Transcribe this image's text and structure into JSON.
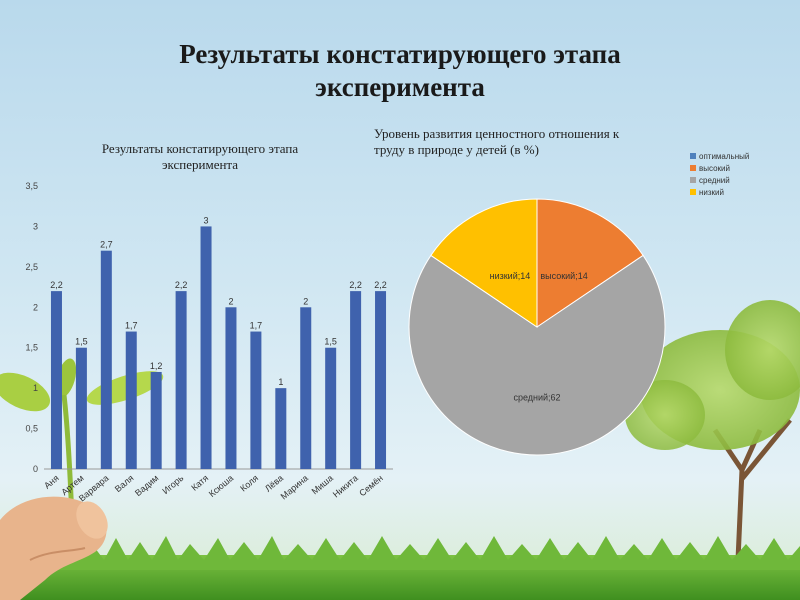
{
  "slide": {
    "title_line1": "Результаты констатирующего этапа",
    "title_line2": "эксперимента"
  },
  "chart_data": [
    {
      "type": "bar",
      "title_line1": "Результаты констатирующего этапа",
      "title_line2": "эксперимента",
      "categories": [
        "Аня",
        "Артем",
        "Варвара",
        "Валя",
        "Вадим",
        "Игорь",
        "Катя",
        "Ксюша",
        "Коля",
        "Лёва",
        "Марина",
        "Миша",
        "Никита",
        "Семён"
      ],
      "values": [
        2.2,
        1.5,
        2.7,
        1.7,
        1.2,
        2.2,
        3,
        2,
        1.7,
        1,
        2,
        1.5,
        2.2,
        2.2
      ],
      "value_labels": [
        "2,2",
        "1,5",
        "2,7",
        "1,7",
        "1,2",
        "2,2",
        "3",
        "2",
        "1,7",
        "1",
        "2",
        "1,5",
        "2,2",
        "2,2"
      ],
      "ylim": [
        0,
        3.5
      ],
      "yticks": [
        0,
        0.5,
        1,
        1.5,
        2,
        2.5,
        3,
        3.5
      ],
      "ytick_labels": [
        "0",
        "0,5",
        "1",
        "1,5",
        "2",
        "2,5",
        "3",
        "3,5"
      ],
      "grid": false,
      "color": "#3f62ad"
    },
    {
      "type": "pie",
      "title_line1": "Уровень развития ценностного отношения к",
      "title_line2": "труду в природе у детей (в %)",
      "slices": [
        {
          "label": "оптимальный",
          "value": 0,
          "color": "#4f81bd",
          "data_label": ""
        },
        {
          "label": "высокий",
          "value": 14,
          "color": "#ed7d31",
          "data_label": "высокий;14"
        },
        {
          "label": "средний",
          "value": 62,
          "color": "#a5a5a5",
          "data_label": "средний;62"
        },
        {
          "label": "низкий",
          "value": 14,
          "color": "#ffc000",
          "data_label": "низкий;14"
        }
      ],
      "legend_position": "top-right"
    }
  ]
}
